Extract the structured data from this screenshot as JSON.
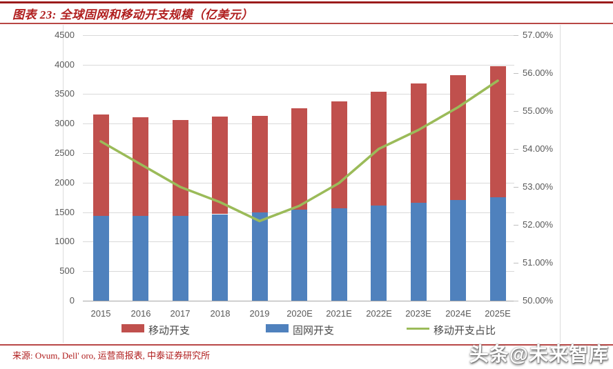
{
  "header": {
    "title": "图表 23: 全球固网和移动开支规模（亿美元）"
  },
  "chart_data": {
    "type": "bar",
    "subtype": "stacked-bars-with-line",
    "title": "全球固网和移动开支规模（亿美元）",
    "categories": [
      "2015",
      "2016",
      "2017",
      "2018",
      "2019",
      "2020E",
      "2021E",
      "2022E",
      "2023E",
      "2024E",
      "2025E"
    ],
    "series": [
      {
        "name": "固网开支",
        "type": "bar",
        "stack_position": "bottom",
        "color": "#4F81BD",
        "values": [
          1440,
          1435,
          1435,
          1465,
          1500,
          1540,
          1575,
          1620,
          1660,
          1700,
          1750
        ]
      },
      {
        "name": "移动开支",
        "type": "bar",
        "stack_position": "top",
        "color": "#C0504D",
        "values": [
          1720,
          1675,
          1625,
          1650,
          1630,
          1720,
          1805,
          1925,
          2025,
          2120,
          2225
        ]
      },
      {
        "name": "移动开支占比",
        "type": "line",
        "axis": "right",
        "color": "#9BBB59",
        "values_pct": [
          54.2,
          53.6,
          53.0,
          52.6,
          52.1,
          52.5,
          53.1,
          54.0,
          54.5,
          55.1,
          55.8
        ]
      }
    ],
    "left_axis": {
      "min": 0,
      "max": 4500,
      "step": 500,
      "tick_labels": [
        "0",
        "500",
        "1000",
        "1500",
        "2000",
        "2500",
        "3000",
        "3500",
        "4000",
        "4500"
      ]
    },
    "right_axis": {
      "min": 50,
      "max": 57,
      "step": 1,
      "tick_labels": [
        "50.00%",
        "51.00%",
        "52.00%",
        "53.00%",
        "54.00%",
        "55.00%",
        "56.00%",
        "57.00%"
      ]
    },
    "legend": [
      {
        "label": "移动开支",
        "swatch": "bar",
        "color": "#C0504D"
      },
      {
        "label": "固网开支",
        "swatch": "bar",
        "color": "#4F81BD"
      },
      {
        "label": "移动开支占比",
        "swatch": "line",
        "color": "#9BBB59"
      }
    ],
    "grid": true,
    "legend_position": "bottom"
  },
  "footer": {
    "source": "来源: Ovum, Dell' oro, 运营商报表, 中泰证券研究所"
  },
  "watermark": {
    "text": "头条@未来智库"
  }
}
